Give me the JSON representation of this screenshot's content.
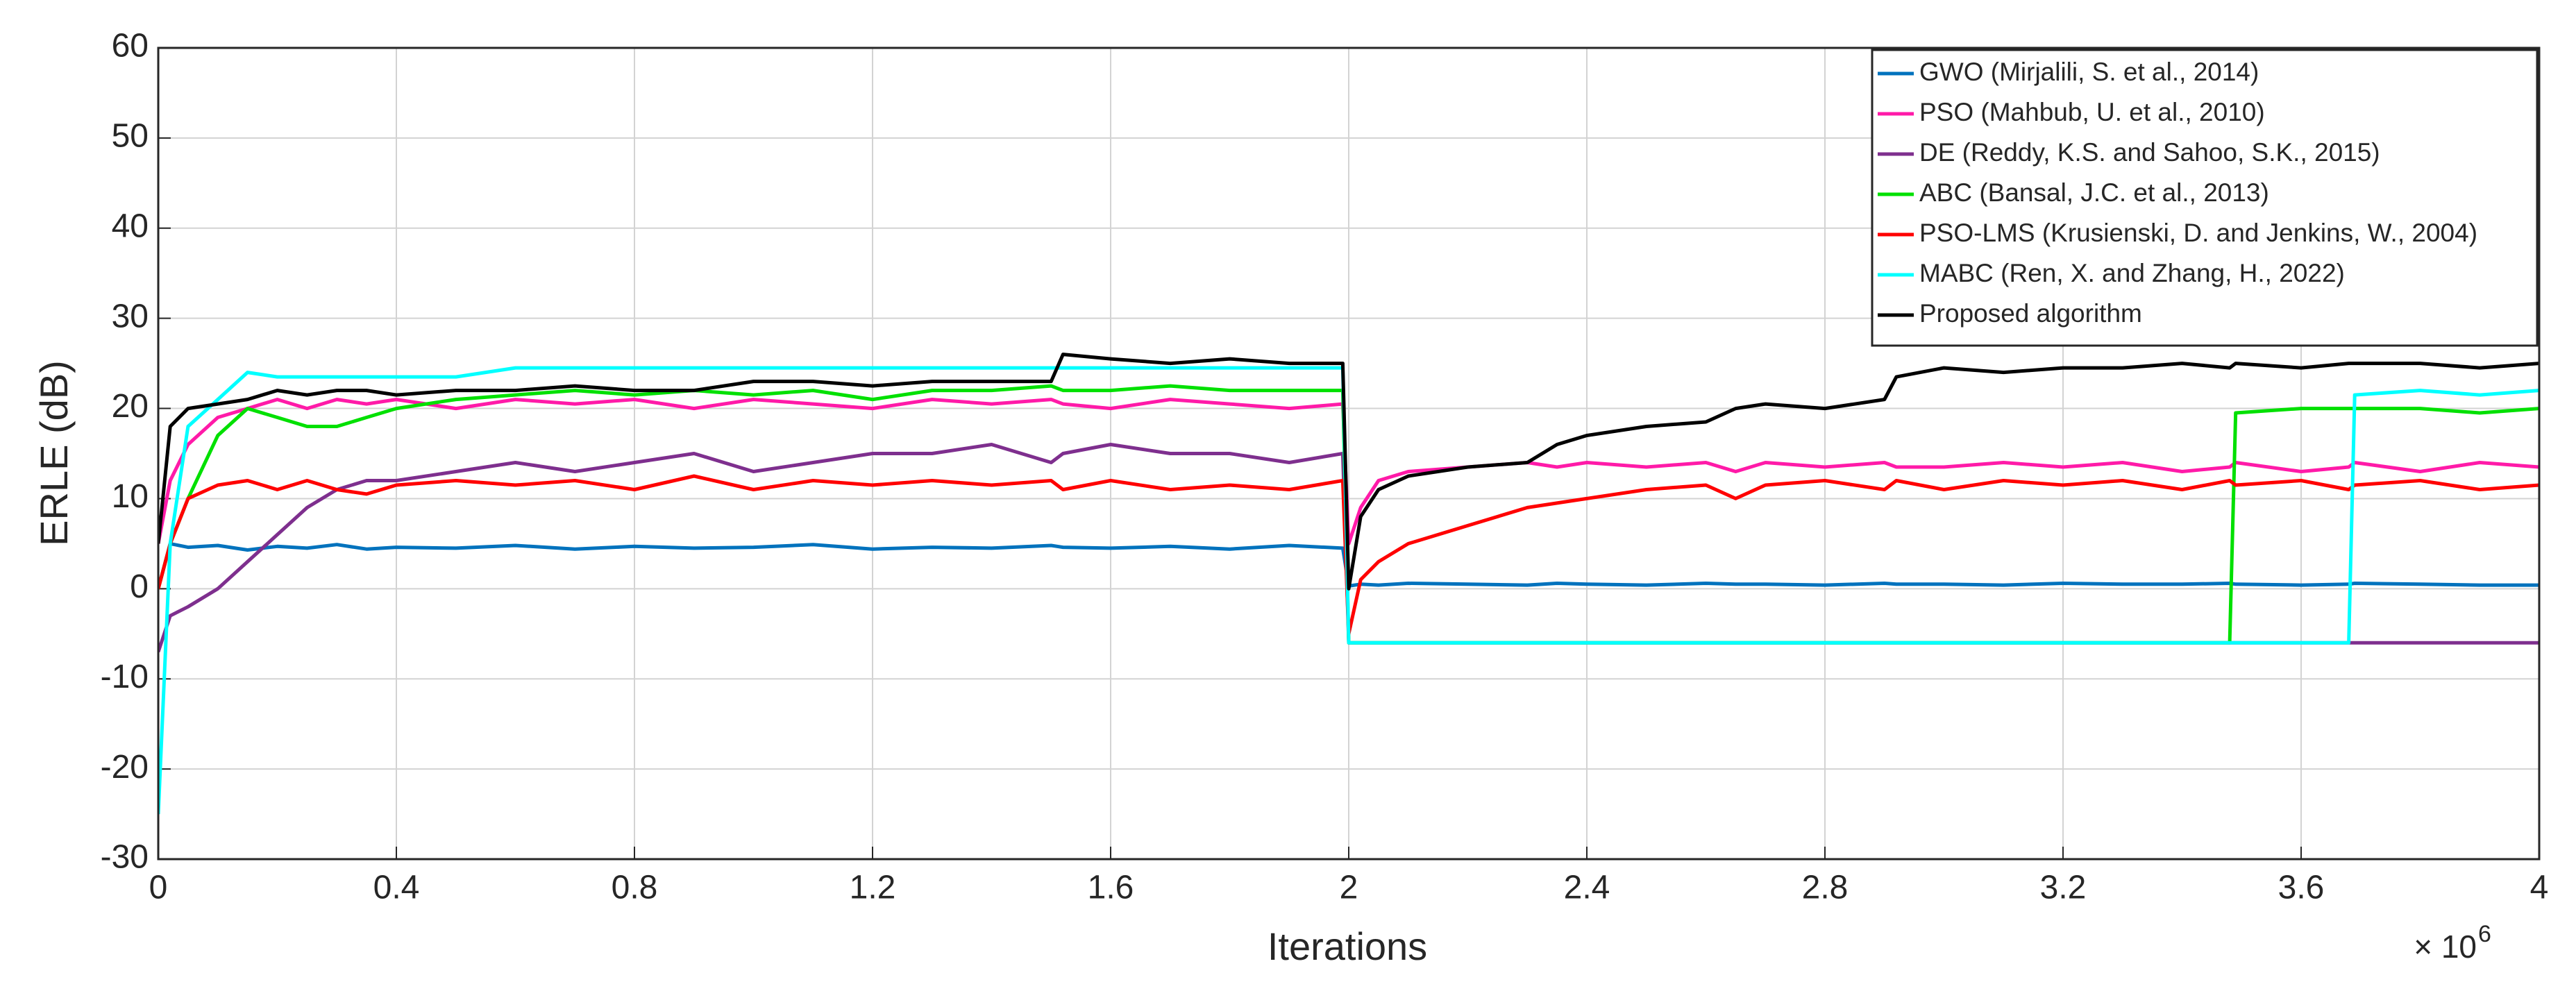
{
  "chart_data": {
    "type": "line",
    "x_label": "Iterations",
    "y_label": "ERLE (dB)",
    "x_multiplier": {
      "base": "× 10",
      "exponent": "6"
    },
    "x": [
      0,
      0.02,
      0.05,
      0.1,
      0.15,
      0.2,
      0.25,
      0.3,
      0.35,
      0.4,
      0.5,
      0.6,
      0.7,
      0.8,
      0.9,
      1.0,
      1.1,
      1.2,
      1.3,
      1.4,
      1.5,
      1.52,
      1.6,
      1.7,
      1.8,
      1.9,
      1.99,
      2.0,
      2.02,
      2.05,
      2.1,
      2.2,
      2.3,
      2.35,
      2.4,
      2.5,
      2.6,
      2.65,
      2.7,
      2.8,
      2.9,
      2.92,
      3.0,
      3.1,
      3.2,
      3.3,
      3.4,
      3.48,
      3.49,
      3.6,
      3.68,
      3.69,
      3.8,
      3.9,
      4.0
    ],
    "xlim": [
      0,
      4
    ],
    "xticks": [
      0,
      0.4,
      0.8,
      1.2,
      1.6,
      2,
      2.4,
      2.8,
      3.2,
      3.6,
      4
    ],
    "ylim": [
      -30,
      60
    ],
    "yticks": [
      -30,
      -20,
      -10,
      0,
      10,
      20,
      30,
      40,
      50,
      60
    ],
    "grid": true,
    "legend_position": "upper-right",
    "series": [
      {
        "name": "GWO (Mirjalili, S. et al., 2014)",
        "color": "#0072bd",
        "values": [
          0,
          5,
          4.6,
          4.8,
          4.3,
          4.7,
          4.5,
          4.9,
          4.4,
          4.6,
          4.5,
          4.8,
          4.4,
          4.7,
          4.5,
          4.6,
          4.9,
          4.4,
          4.6,
          4.5,
          4.8,
          4.6,
          4.5,
          4.7,
          4.4,
          4.8,
          4.5,
          0.3,
          0.5,
          0.4,
          0.6,
          0.5,
          0.4,
          0.6,
          0.5,
          0.4,
          0.6,
          0.5,
          0.5,
          0.4,
          0.6,
          0.5,
          0.5,
          0.4,
          0.6,
          0.5,
          0.5,
          0.6,
          0.5,
          0.4,
          0.5,
          0.6,
          0.5,
          0.4,
          0.4
        ]
      },
      {
        "name": "PSO (Mahbub, U. et al., 2010)",
        "color": "#ff1aa8",
        "values": [
          5,
          12,
          16,
          19,
          20,
          21,
          20,
          21,
          20.5,
          21,
          20,
          21,
          20.5,
          21,
          20,
          21,
          20.5,
          20,
          21,
          20.5,
          21,
          20.5,
          20,
          21,
          20.5,
          20,
          20.5,
          5,
          9,
          12,
          13,
          13.5,
          14,
          13.5,
          14,
          13.5,
          14,
          13,
          14,
          13.5,
          14,
          13.5,
          13.5,
          14,
          13.5,
          14,
          13,
          13.5,
          14,
          13,
          13.5,
          14,
          13,
          14,
          13.5
        ]
      },
      {
        "name": "DE (Reddy, K.S. and Sahoo, S.K., 2015)",
        "color": "#7e2f8e",
        "values": [
          -7,
          -3,
          -2,
          0,
          3,
          6,
          9,
          11,
          12,
          12,
          13,
          14,
          13,
          14,
          15,
          13,
          14,
          15,
          15,
          16,
          14,
          15,
          16,
          15,
          15,
          14,
          15,
          -6,
          -6,
          -6,
          -6,
          -6,
          -6,
          -6,
          -6,
          -6,
          -6,
          -6,
          -6,
          -6,
          -6,
          -6,
          -6,
          -6,
          -6,
          -6,
          -6,
          -6,
          -6,
          -6,
          -6,
          -6,
          -6,
          -6,
          -6
        ]
      },
      {
        "name": "ABC (Bansal, J.C. et al., 2013)",
        "color": "#00e000",
        "values": [
          0,
          5,
          10,
          17,
          20,
          19,
          18,
          18,
          19,
          20,
          21,
          21.5,
          22,
          21.5,
          22,
          21.5,
          22,
          21,
          22,
          22,
          22.5,
          22,
          22,
          22.5,
          22,
          22,
          22,
          -6,
          -6,
          -6,
          -6,
          -6,
          -6,
          -6,
          -6,
          -6,
          -6,
          -6,
          -6,
          -6,
          -6,
          -6,
          -6,
          -6,
          -6,
          -6,
          -6,
          -6,
          19.5,
          20,
          20,
          20,
          20,
          19.5,
          20
        ]
      },
      {
        "name": "PSO-LMS (Krusienski, D. and Jenkins, W., 2004)",
        "color": "#ff0000",
        "values": [
          0,
          5,
          10,
          11.5,
          12,
          11,
          12,
          11,
          10.5,
          11.5,
          12,
          11.5,
          12,
          11,
          12.5,
          11,
          12,
          11.5,
          12,
          11.5,
          12,
          11,
          12,
          11,
          11.5,
          11,
          12,
          -5,
          1,
          3,
          5,
          7,
          9,
          9.5,
          10,
          11,
          11.5,
          10,
          11.5,
          12,
          11,
          12,
          11,
          12,
          11.5,
          12,
          11,
          12,
          11.5,
          12,
          11,
          11.5,
          12,
          11,
          11.5
        ]
      },
      {
        "name": "MABC (Ren, X. and Zhang, H., 2022)",
        "color": "#00ffff",
        "values": [
          -25,
          5,
          18,
          21,
          24,
          23.5,
          23.5,
          23.5,
          23.5,
          23.5,
          23.5,
          24.5,
          24.5,
          24.5,
          24.5,
          24.5,
          24.5,
          24.5,
          24.5,
          24.5,
          24.5,
          24.5,
          24.5,
          24.5,
          24.5,
          24.5,
          24.5,
          -6,
          -6,
          -6,
          -6,
          -6,
          -6,
          -6,
          -6,
          -6,
          -6,
          -6,
          -6,
          -6,
          -6,
          -6,
          -6,
          -6,
          -6,
          -6,
          -6,
          -6,
          -6,
          -6,
          -6,
          21.5,
          22,
          21.5,
          22
        ]
      },
      {
        "name": "Proposed algorithm",
        "color": "#000000",
        "values": [
          5,
          18,
          20,
          20.5,
          21,
          22,
          21.5,
          22,
          22,
          21.5,
          22,
          22,
          22.5,
          22,
          22,
          23,
          23,
          22.5,
          23,
          23,
          23,
          26,
          25.5,
          25,
          25.5,
          25,
          25,
          0,
          8,
          11,
          12.5,
          13.5,
          14,
          16,
          17,
          18,
          18.5,
          20,
          20.5,
          20,
          21,
          23.5,
          24.5,
          24,
          24.5,
          24.5,
          25,
          24.5,
          25,
          24.5,
          25,
          25,
          25,
          24.5,
          25
        ]
      }
    ]
  }
}
